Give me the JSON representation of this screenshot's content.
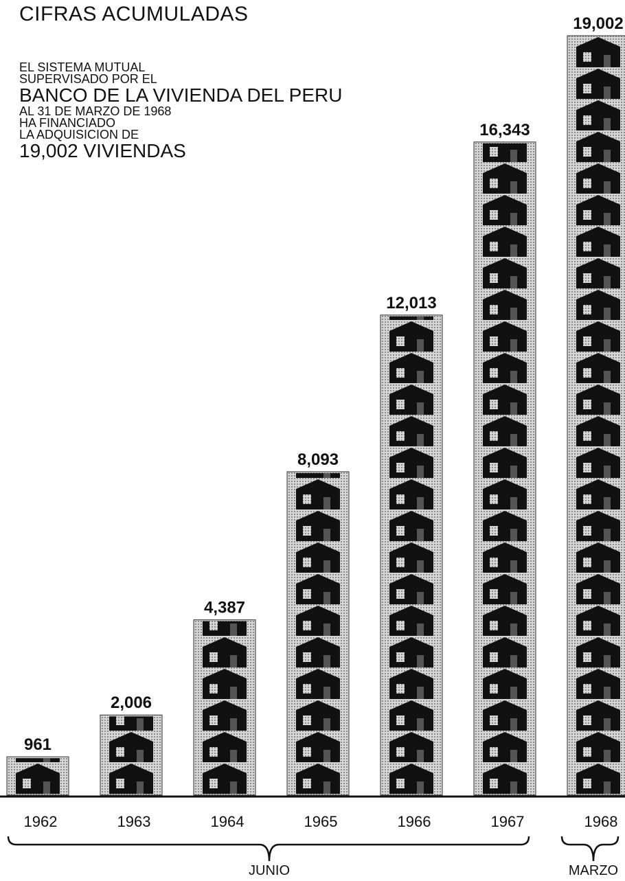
{
  "header": {
    "title": "CIFRAS ACUMULADAS"
  },
  "description": {
    "line1": "EL SISTEMA MUTUAL",
    "line2": "SUPERVISADO POR EL",
    "line3": "BANCO DE LA VIVIENDA DEL PERU",
    "line4": "AL 31 DE MARZO DE 1968",
    "line5": "HA FINANCIADO",
    "line6": "LA ADQUISICION DE",
    "line7": "19,002 VIVIENDAS"
  },
  "chart_data": {
    "type": "bar",
    "title": "CIFRAS ACUMULADAS",
    "categories": [
      "1962",
      "1963",
      "1964",
      "1965",
      "1966",
      "1967",
      "1968"
    ],
    "values": [
      961,
      2006,
      4387,
      8093,
      12013,
      16343,
      19002
    ],
    "value_labels": [
      "961",
      "2,006",
      "4,387",
      "8,093",
      "12,013",
      "16,343",
      "19,002"
    ],
    "groups": [
      {
        "label": "JUNIO",
        "categories": [
          "1962",
          "1963",
          "1964",
          "1965",
          "1966",
          "1967"
        ]
      },
      {
        "label": "MARZO",
        "categories": [
          "1968"
        ]
      }
    ],
    "ylim": [
      0,
      19002
    ],
    "grid": false,
    "legend": "none",
    "colors": {
      "bar_fill": "#c9c9c9",
      "house": "#111111",
      "axis": "#111111"
    }
  }
}
